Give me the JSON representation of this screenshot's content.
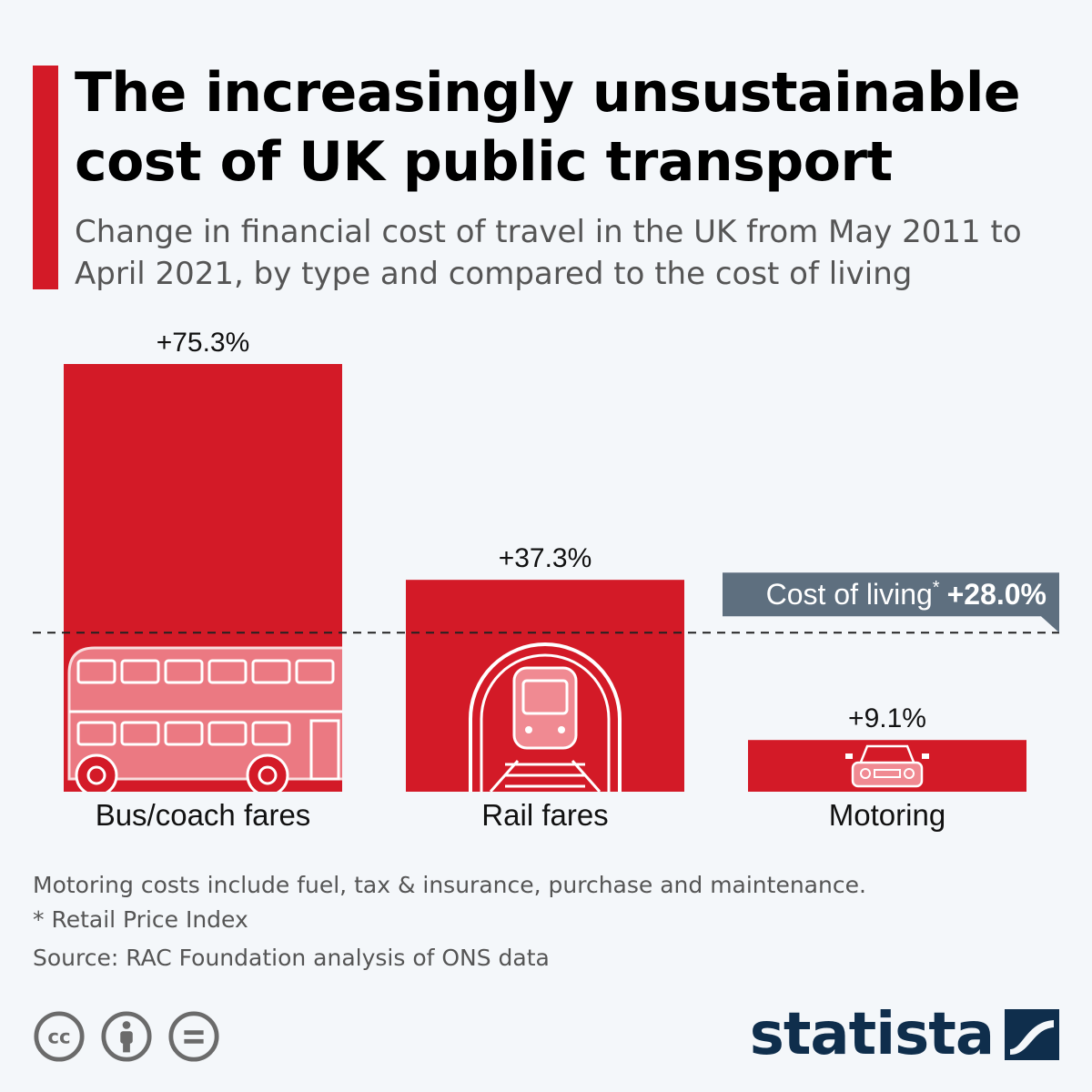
{
  "header": {
    "title": "The increasingly unsustainable cost of UK public transport",
    "subtitle": "Change in financial cost of travel in the UK from May 2011 to April 2021, by type and compared to the cost of living"
  },
  "chart_data": {
    "type": "bar",
    "categories": [
      "Bus/coach fares",
      "Rail fares",
      "Motoring"
    ],
    "values": [
      75.3,
      37.3,
      9.1
    ],
    "value_labels": [
      "+75.3%",
      "+37.3%",
      "+9.1%"
    ],
    "icons": [
      "double-decker-bus-icon",
      "train-tunnel-icon",
      "car-icon"
    ],
    "reference_line": {
      "label": "Cost of living",
      "marker": "*",
      "value": 28.0,
      "value_label": "+28.0%"
    },
    "ylim": [
      0,
      75.3
    ],
    "grid": false,
    "colors": {
      "bar": "#d31a27",
      "reference_badge": "#5e6f7f",
      "icon_overlay": "#f08a92"
    }
  },
  "footer": {
    "note": "Motoring costs include fuel, tax & insurance, purchase and maintenance.",
    "footnote": "* Retail Price Index",
    "source": "Source: RAC Foundation analysis of ONS data",
    "license_icons": [
      "cc-icon",
      "attribution-icon",
      "no-derivatives-icon"
    ],
    "brand": "statista"
  }
}
